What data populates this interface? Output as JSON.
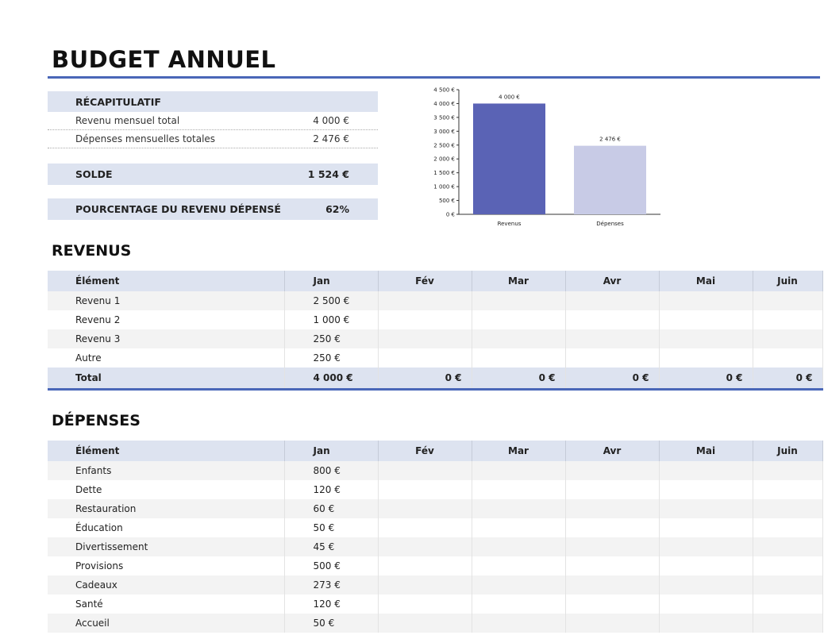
{
  "title": "BUDGET ANNUEL",
  "summary": {
    "header": "RÉCAPITULATIF",
    "rows": [
      {
        "label": "Revenu mensuel total",
        "value": "4 000 €"
      },
      {
        "label": "Dépenses mensuelles totales",
        "value": "2 476 €"
      }
    ],
    "balance_label": "SOLDE",
    "balance_value": "1 524 €",
    "pct_label": "POURCENTAGE DU REVENU DÉPENSÉ",
    "pct_value": "62%"
  },
  "chart_data": {
    "type": "bar",
    "categories": [
      "Revenus",
      "Dépenses"
    ],
    "values": [
      4000,
      2476
    ],
    "data_labels": [
      "4 000 €",
      "2 476 €"
    ],
    "colors": [
      "#5a63b5",
      "#c8cbe6"
    ],
    "ylim": [
      0,
      4500
    ],
    "yticks": [
      "0 €",
      "500 €",
      "1 000 €",
      "1 500 €",
      "2 000 €",
      "2 500 €",
      "3 000 €",
      "3 500 €",
      "4 000 €",
      "4 500 €"
    ],
    "grid": false
  },
  "income": {
    "title": "REVENUS",
    "columns": [
      "Élément",
      "Jan",
      "Fév",
      "Mar",
      "Avr",
      "Mai",
      "Juin"
    ],
    "rows": [
      {
        "item": "Revenu 1",
        "jan": "2 500 €"
      },
      {
        "item": "Revenu 2",
        "jan": "1 000 €"
      },
      {
        "item": "Revenu 3",
        "jan": "250 €"
      },
      {
        "item": "Autre",
        "jan": "250 €"
      }
    ],
    "total": [
      "Total",
      "4 000 €",
      "0 €",
      "0 €",
      "0 €",
      "0 €",
      "0 €"
    ]
  },
  "expenses": {
    "title": "DÉPENSES",
    "columns": [
      "Élément",
      "Jan",
      "Fév",
      "Mar",
      "Avr",
      "Mai",
      "Juin"
    ],
    "rows": [
      {
        "item": "Enfants",
        "jan": "800 €"
      },
      {
        "item": "Dette",
        "jan": "120 €"
      },
      {
        "item": "Restauration",
        "jan": "60 €"
      },
      {
        "item": "Éducation",
        "jan": "50 €"
      },
      {
        "item": "Divertissement",
        "jan": "45 €"
      },
      {
        "item": "Provisions",
        "jan": "500 €"
      },
      {
        "item": "Cadeaux",
        "jan": "273 €"
      },
      {
        "item": "Santé",
        "jan": "120 €"
      },
      {
        "item": "Accueil",
        "jan": "50 €"
      }
    ]
  }
}
